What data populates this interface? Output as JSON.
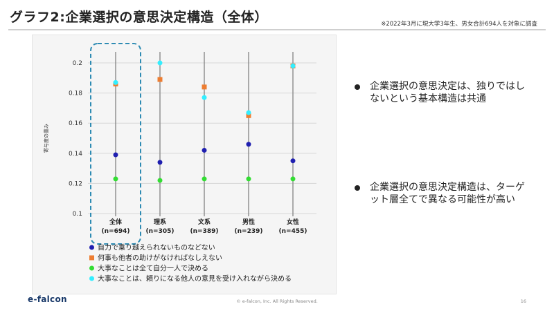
{
  "header": {
    "title": "グラフ2:企業選択の意思決定構造（全体）",
    "note": "※2022年3月に現大学3年生、男女合計694人を対象に調査"
  },
  "bullets": [
    {
      "text": "企業選択の意思決定は、独りではしないという基本構造は共通"
    },
    {
      "text": "企業選択の意思決定構造は、ターゲット層全てで異なる可能性が高い"
    }
  ],
  "footer": {
    "logo": "e-falcon",
    "copyright": "© e-falcon, Inc. All Rights Reserved.",
    "page": "16"
  },
  "chart_data": {
    "type": "scatter",
    "ylabel": "寄与度の重み",
    "ylim": [
      0.1,
      0.2
    ],
    "yticks": [
      "0.1",
      "0.12",
      "0.14",
      "0.16",
      "0.18",
      "0.2"
    ],
    "grid": true,
    "legend_position": "bottom-left",
    "highlight_category": "全体",
    "categories": [
      {
        "name": "全体",
        "n": "(n=694)"
      },
      {
        "name": "理系",
        "n": "(n=305)"
      },
      {
        "name": "文系",
        "n": "(n=389)"
      },
      {
        "name": "男性",
        "n": "(n=239)"
      },
      {
        "name": "女性",
        "n": "(n=455)"
      }
    ],
    "series": [
      {
        "name": "自力で乗り越えられないものなどない",
        "color": "#1f1fb0",
        "marker": "circle",
        "values": [
          0.139,
          0.134,
          0.142,
          0.146,
          0.135
        ]
      },
      {
        "name": "何事も他者の助けがなければなしえない",
        "color": "#ed7d31",
        "marker": "square",
        "values": [
          0.186,
          0.189,
          0.184,
          0.165,
          0.198
        ]
      },
      {
        "name": "大事なことは全て自分一人で決める",
        "color": "#33dd33",
        "marker": "circle",
        "values": [
          0.123,
          0.122,
          0.123,
          0.123,
          0.123
        ]
      },
      {
        "name": "大事なことは、頼りになる他人の意見を受け入れながら決める",
        "color": "#33eeff",
        "marker": "circle",
        "values": [
          0.187,
          0.2,
          0.177,
          0.167,
          0.198
        ]
      }
    ]
  }
}
